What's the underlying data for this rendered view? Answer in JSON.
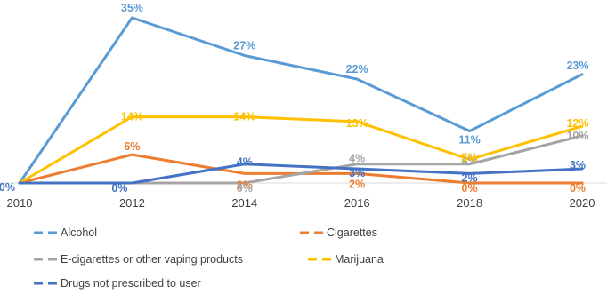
{
  "chart_data": {
    "type": "line",
    "x": [
      "2010",
      "2012",
      "2014",
      "2016",
      "2018",
      "2020"
    ],
    "ylim": [
      0,
      35
    ],
    "grid": false,
    "legend_position": "bottom",
    "series": [
      {
        "name": "Alcohol",
        "values": [
          0,
          35,
          27,
          22,
          11,
          23
        ],
        "labels": [
          "",
          "35%",
          "27%",
          "22%",
          "11%",
          "23%"
        ],
        "color": "#5b9bd5"
      },
      {
        "name": "Cigarettes",
        "values": [
          0,
          6,
          2,
          2,
          0,
          0
        ],
        "labels": [
          "",
          "6%",
          "2%",
          "2%",
          "0%",
          "0%"
        ],
        "color": "#ed7d31"
      },
      {
        "name": "E-cigarettes or other vaping products",
        "values": [
          0,
          0,
          0,
          4,
          4,
          10
        ],
        "labels": [
          "",
          "",
          "0%",
          "4%",
          "4%",
          "10%"
        ],
        "color": "#a5a5a5"
      },
      {
        "name": "Marijuana",
        "values": [
          0,
          14,
          14,
          13,
          5,
          12
        ],
        "labels": [
          "",
          "14%",
          "14%",
          "13%",
          "5%",
          "12%"
        ],
        "color": "#ffc000"
      },
      {
        "name": "Drugs not prescribed to user",
        "values": [
          0,
          0,
          4,
          3,
          2,
          3
        ],
        "labels": [
          "0%",
          "0%",
          "4%",
          "3%",
          "2%",
          "3%"
        ],
        "color": "#4472c4"
      }
    ]
  }
}
